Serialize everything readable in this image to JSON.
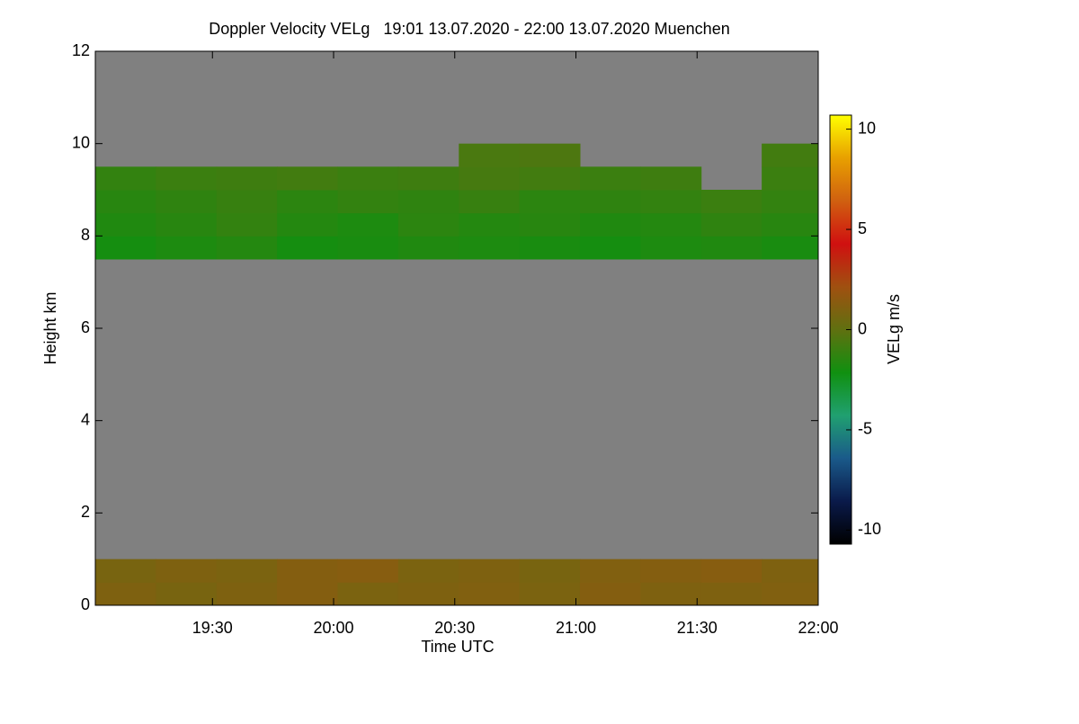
{
  "chart_data": {
    "type": "heatmap",
    "title": "Doppler Velocity VELg   19:01 13.07.2020 - 22:00 13.07.2020 Muenchen",
    "xlabel": "Time UTC",
    "ylabel": "Height km",
    "xlim": [
      1141,
      1320
    ],
    "xticks": [
      {
        "value": 1170,
        "label": "19:30"
      },
      {
        "value": 1200,
        "label": "20:00"
      },
      {
        "value": 1230,
        "label": "20:30"
      },
      {
        "value": 1260,
        "label": "21:00"
      },
      {
        "value": 1290,
        "label": "21:30"
      },
      {
        "value": 1320,
        "label": "22:00"
      }
    ],
    "ylim": [
      0,
      12
    ],
    "yticks": [
      0,
      2,
      4,
      6,
      8,
      10,
      12
    ],
    "x_bins": [
      1141,
      1156,
      1171,
      1186,
      1201,
      1216,
      1231,
      1246,
      1261,
      1276,
      1291,
      1306,
      1320
    ],
    "y_bins": [
      0,
      0.5,
      1,
      1.5,
      2,
      2.5,
      3,
      3.5,
      4,
      4.5,
      5,
      5.5,
      6,
      6.5,
      7,
      7.5,
      8,
      8.5,
      9,
      9.5,
      10,
      10.5,
      11,
      11.5,
      12
    ],
    "missing_color": "#808080",
    "values": [
      [
        1,
        0.8,
        1,
        1.2,
        0.9,
        1,
        1.1,
        0.9,
        1.2,
        1,
        1,
        1.1
      ],
      [
        0.8,
        1,
        0.9,
        1.2,
        1.3,
        0.9,
        1,
        0.8,
        1.1,
        1.2,
        1.3,
        1
      ],
      [
        null,
        null,
        null,
        null,
        null,
        null,
        null,
        null,
        null,
        null,
        null,
        null
      ],
      [
        null,
        null,
        null,
        null,
        null,
        null,
        null,
        null,
        null,
        null,
        null,
        null
      ],
      [
        null,
        null,
        null,
        null,
        null,
        null,
        null,
        null,
        null,
        null,
        null,
        null
      ],
      [
        null,
        null,
        null,
        null,
        null,
        null,
        null,
        null,
        null,
        null,
        null,
        null
      ],
      [
        null,
        null,
        null,
        null,
        null,
        null,
        null,
        null,
        null,
        null,
        null,
        null
      ],
      [
        null,
        null,
        null,
        null,
        null,
        null,
        null,
        null,
        null,
        null,
        null,
        null
      ],
      [
        null,
        null,
        null,
        null,
        null,
        null,
        null,
        null,
        null,
        null,
        null,
        null
      ],
      [
        null,
        null,
        null,
        null,
        null,
        null,
        null,
        null,
        null,
        null,
        null,
        null
      ],
      [
        null,
        null,
        null,
        null,
        null,
        null,
        null,
        null,
        null,
        null,
        null,
        null
      ],
      [
        null,
        null,
        null,
        null,
        null,
        null,
        null,
        null,
        null,
        null,
        null,
        null
      ],
      [
        null,
        null,
        null,
        null,
        null,
        null,
        null,
        null,
        null,
        null,
        null,
        null
      ],
      [
        null,
        null,
        null,
        null,
        null,
        null,
        null,
        null,
        null,
        null,
        null,
        null
      ],
      [
        null,
        null,
        null,
        null,
        null,
        null,
        null,
        null,
        null,
        null,
        null,
        null
      ],
      [
        -2,
        -1.8,
        -1.6,
        -2,
        -1.9,
        -1.7,
        -1.8,
        -1.9,
        -2,
        -1.8,
        -1.7,
        -1.9
      ],
      [
        -1.7,
        -1.5,
        -1.2,
        -1.6,
        -1.8,
        -1.4,
        -1.6,
        -1.5,
        -1.7,
        -1.6,
        -1.3,
        -1.5
      ],
      [
        -1.5,
        -1.3,
        -1.1,
        -1.4,
        -1.2,
        -1.3,
        -1.1,
        -1.4,
        -1.3,
        -1.2,
        -1,
        -1.2
      ],
      [
        -1.2,
        -1,
        -0.9,
        -0.8,
        -1,
        -0.9,
        -0.7,
        -0.8,
        -1,
        -0.9,
        null,
        -1
      ],
      [
        null,
        null,
        null,
        null,
        null,
        null,
        -0.6,
        -0.5,
        null,
        null,
        null,
        -0.8
      ],
      [
        null,
        null,
        null,
        null,
        null,
        null,
        null,
        null,
        null,
        null,
        null,
        null
      ],
      [
        null,
        null,
        null,
        null,
        null,
        null,
        null,
        null,
        null,
        null,
        null,
        null
      ],
      [
        null,
        null,
        null,
        null,
        null,
        null,
        null,
        null,
        null,
        null,
        null,
        null
      ],
      [
        null,
        null,
        null,
        null,
        null,
        null,
        null,
        null,
        null,
        null,
        null,
        null
      ]
    ],
    "colorbar": {
      "label": "VELg m/s",
      "lim": [
        -10.7,
        10.7
      ],
      "ticks": [
        -10,
        -5,
        0,
        5,
        10
      ],
      "colors": [
        "#000000",
        "#0a1a4a",
        "#1a5a8a",
        "#20a070",
        "#109010",
        "#607010",
        "#a05010",
        "#d01010",
        "#d06010",
        "#e8a000",
        "#ffff00"
      ]
    }
  }
}
